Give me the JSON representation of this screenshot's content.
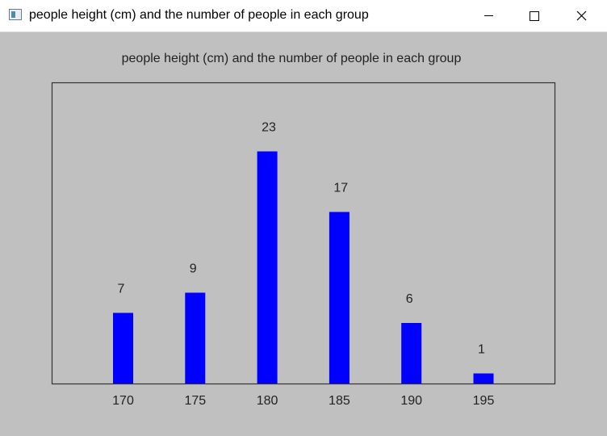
{
  "window": {
    "title": "people height (cm) and the number of people in each group",
    "icons": {
      "app": "app-window-icon",
      "minimize": "minimize-icon",
      "maximize": "maximize-icon",
      "close": "close-icon"
    }
  },
  "colors": {
    "background": "#c0c0c0",
    "bar": "#0000ff",
    "frame": "#333333",
    "titlebar": "#ffffff"
  },
  "chart_data": {
    "type": "bar",
    "title": "people height (cm) and the number of people in each group",
    "categories": [
      "170",
      "175",
      "180",
      "185",
      "190",
      "195"
    ],
    "values": [
      7,
      9,
      23,
      17,
      6,
      1
    ],
    "data_labels": [
      "7",
      "9",
      "23",
      "17",
      "6",
      "1"
    ],
    "xlabel": "",
    "ylabel": "",
    "grid": false,
    "legend": "none"
  }
}
